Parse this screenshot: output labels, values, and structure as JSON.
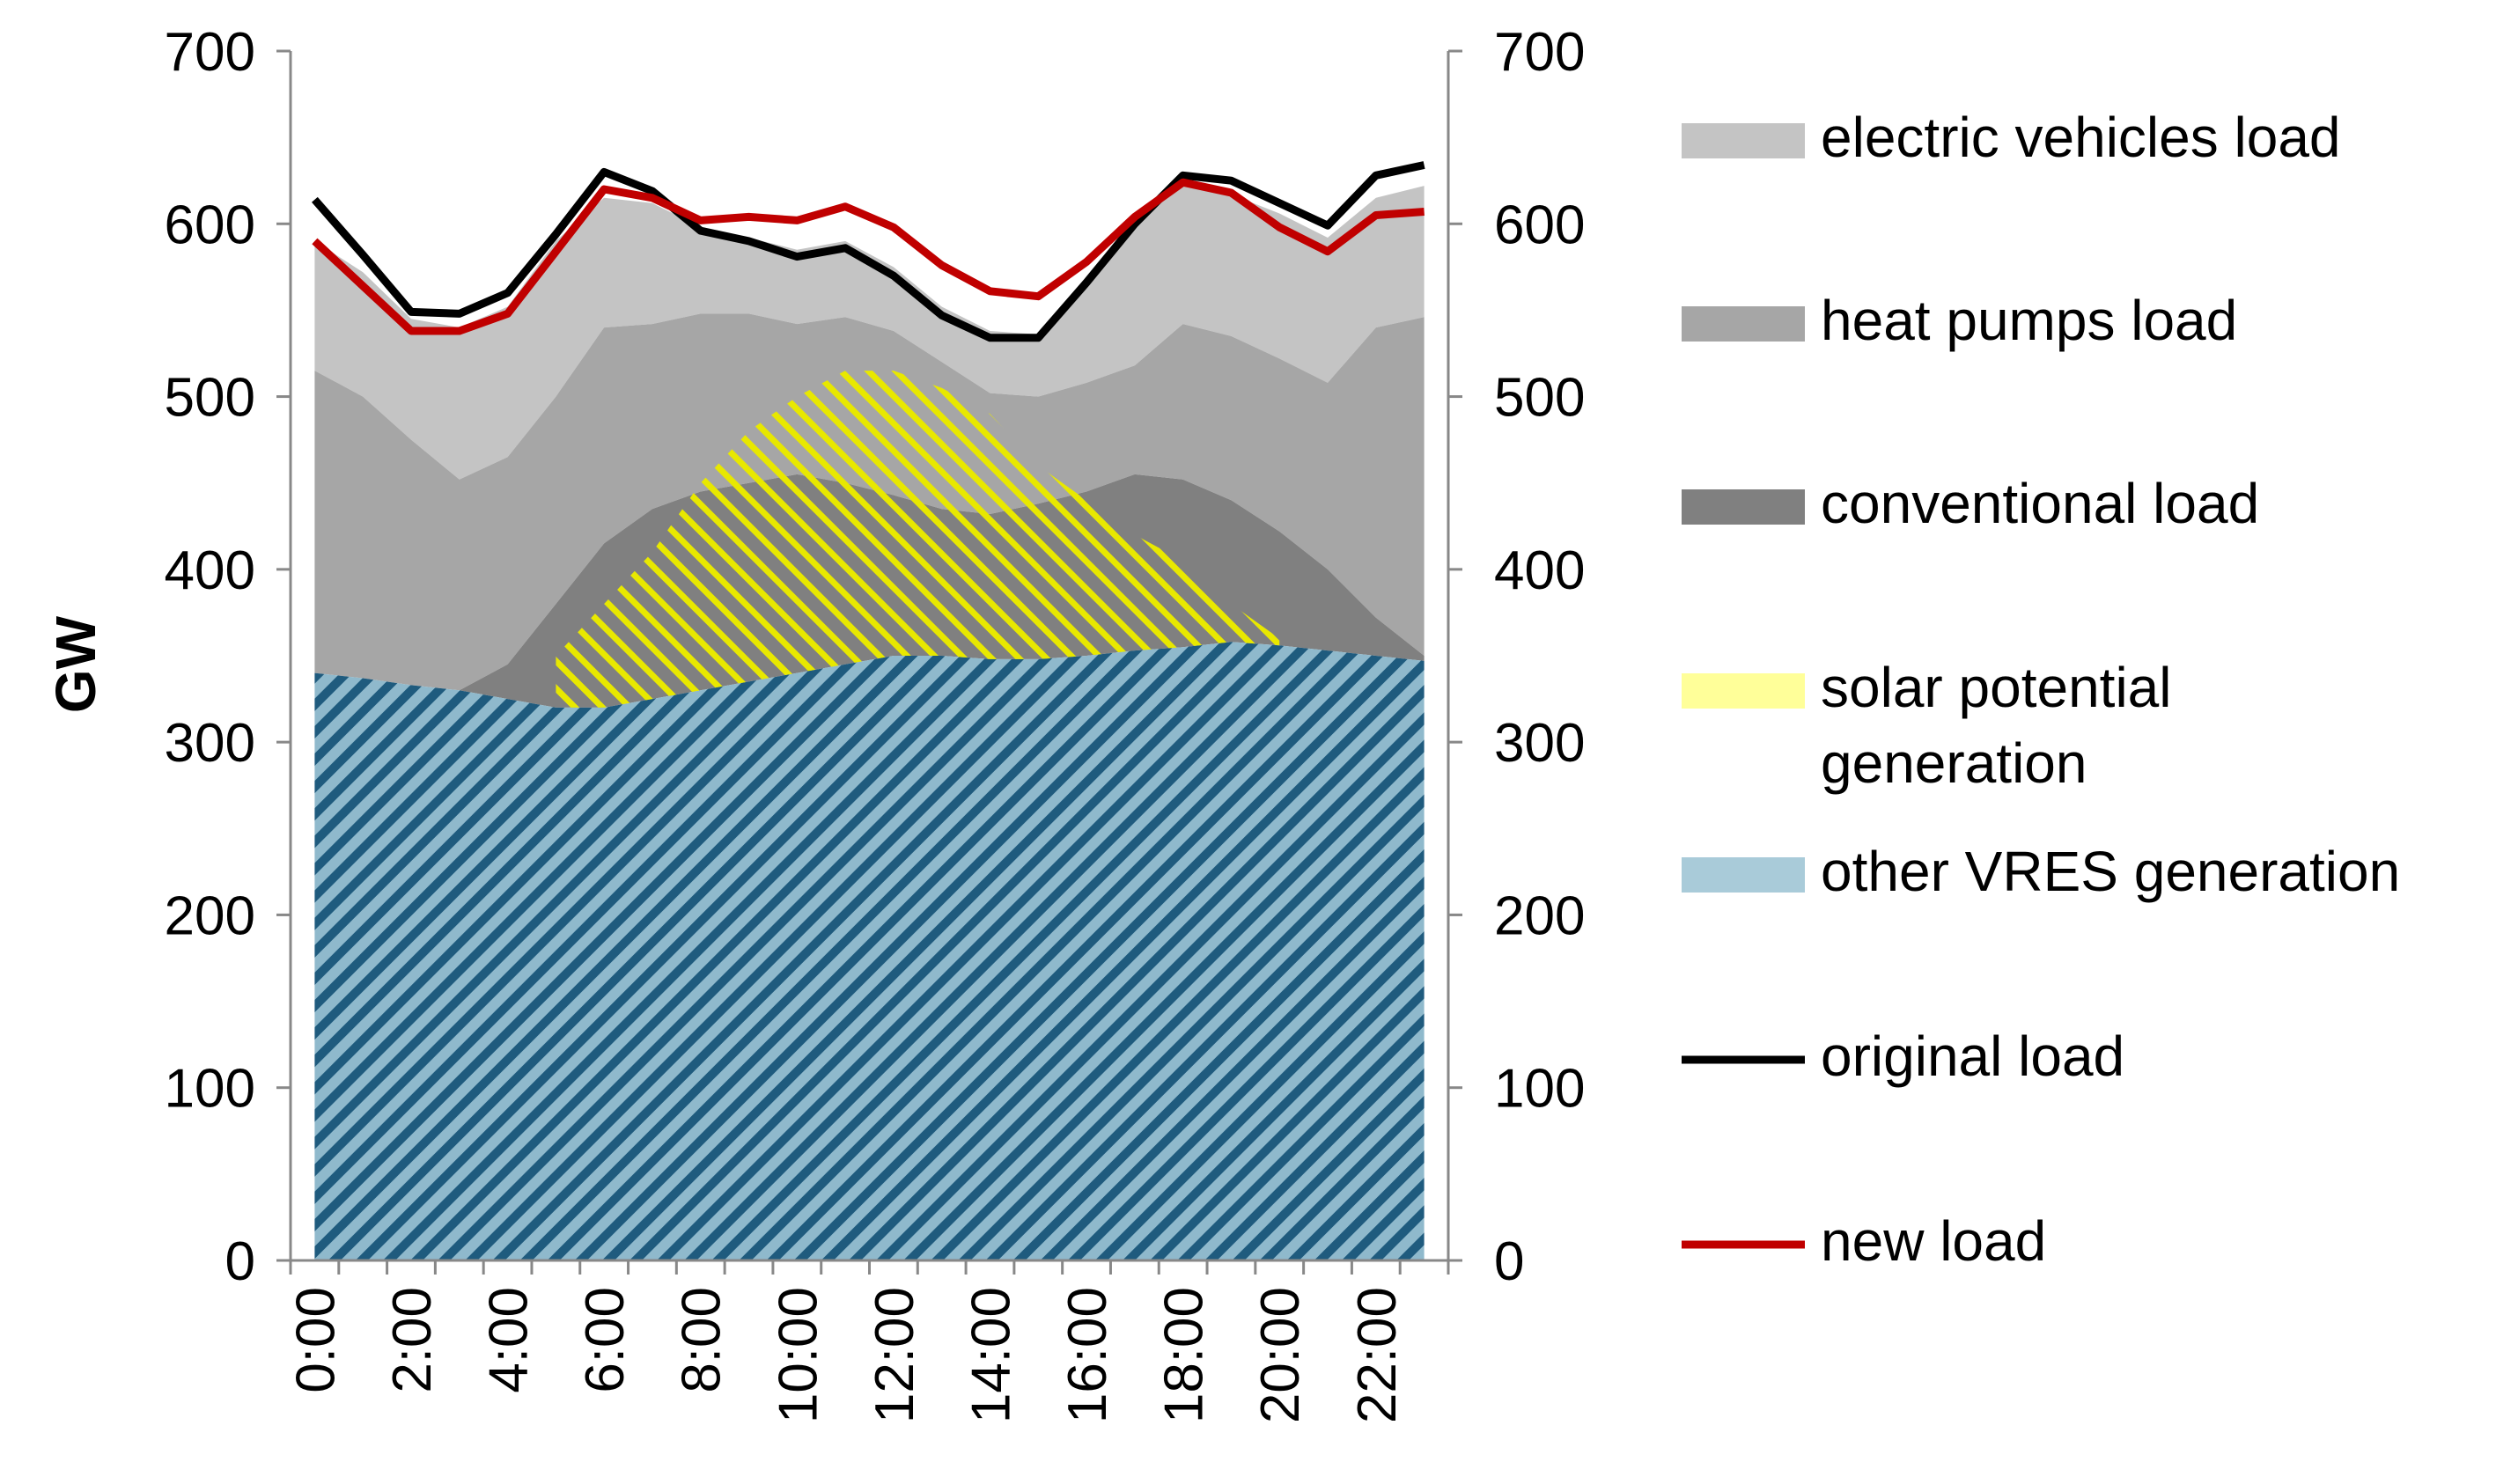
{
  "colors": {
    "ev": "#c4c4c4",
    "hp": "#a6a6a6",
    "conv": "#808080",
    "solar_line": "#e8e800",
    "solar_legend": "#ffff99",
    "vres_line": "#1f5b7e",
    "vres_bg": "#8fb9cc",
    "vres_legend": "#a9cbd9",
    "original": "#000000",
    "new": "#c00000",
    "axis": "#888888"
  },
  "chart_data": {
    "type": "area",
    "ylabel": "GW",
    "ylim": [
      0,
      700
    ],
    "yticks": [
      0,
      100,
      200,
      300,
      400,
      500,
      600,
      700
    ],
    "y2ticks": [
      0,
      100,
      200,
      300,
      400,
      500,
      600,
      700
    ],
    "x": [
      0,
      1,
      2,
      3,
      4,
      5,
      6,
      7,
      8,
      9,
      10,
      11,
      12,
      13,
      14,
      15,
      16,
      17,
      18,
      19,
      20,
      21,
      22,
      23
    ],
    "xtick_labels": [
      "0:00",
      "2:00",
      "4:00",
      "6:00",
      "8:00",
      "10:00",
      "12:00",
      "14:00",
      "16:00",
      "18:00",
      "20:00",
      "22:00"
    ],
    "series": [
      {
        "key": "vres",
        "name": "other VRES generation",
        "kind": "area",
        "values": [
          340,
          337,
          333,
          330,
          325,
          320,
          320,
          325,
          330,
          335,
          340,
          345,
          350,
          350,
          348,
          348,
          350,
          353,
          355,
          358,
          356,
          353,
          350,
          347
        ]
      },
      {
        "key": "solar",
        "name": "solar potential generation",
        "kind": "area",
        "values": [
          null,
          null,
          null,
          null,
          null,
          350,
          380,
          410,
          450,
          480,
          500,
          515,
          515,
          505,
          490,
          460,
          440,
          420,
          405,
          380,
          360,
          null,
          null,
          null
        ]
      },
      {
        "key": "conv",
        "name": "conventional load",
        "kind": "stack_top",
        "values": [
          340,
          337,
          333,
          330,
          345,
          380,
          415,
          435,
          445,
          450,
          455,
          450,
          443,
          435,
          432,
          438,
          445,
          455,
          452,
          440,
          422,
          400,
          372,
          350
        ]
      },
      {
        "key": "hp",
        "name": "heat pumps load",
        "kind": "stack_top",
        "values": [
          515,
          500,
          475,
          452,
          465,
          500,
          540,
          542,
          548,
          548,
          542,
          546,
          538,
          520,
          502,
          500,
          508,
          518,
          542,
          535,
          522,
          508,
          540,
          546
        ]
      },
      {
        "key": "ev",
        "name": "electric vehicles load",
        "kind": "stack_top",
        "values": [
          590,
          572,
          545,
          540,
          552,
          590,
          615,
          612,
          598,
          592,
          585,
          590,
          575,
          552,
          538,
          536,
          568,
          605,
          625,
          617,
          606,
          592,
          615,
          622
        ]
      },
      {
        "key": "original",
        "name": "original load",
        "kind": "line",
        "values": [
          614,
          582,
          549,
          548,
          560,
          594,
          630,
          619,
          596,
          590,
          581,
          586,
          570,
          547,
          534,
          534,
          566,
          600,
          628,
          625,
          612,
          599,
          628,
          634
        ]
      },
      {
        "key": "new",
        "name": "new load",
        "kind": "line",
        "values": [
          590,
          564,
          538,
          538,
          548,
          584,
          620,
          615,
          602,
          604,
          602,
          610,
          598,
          576,
          561,
          558,
          578,
          604,
          624,
          618,
          598,
          584,
          605,
          607
        ]
      }
    ],
    "legend": [
      {
        "key": "ev",
        "lines": [
          "electric vehicles load"
        ]
      },
      {
        "key": "hp",
        "lines": [
          "heat pumps load"
        ]
      },
      {
        "key": "conv",
        "lines": [
          "conventional load"
        ]
      },
      {
        "key": "solar",
        "lines": [
          "solar potential",
          "generation"
        ]
      },
      {
        "key": "vres",
        "lines": [
          "other VRES generation"
        ]
      },
      {
        "key": "original",
        "lines": [
          "original load"
        ]
      },
      {
        "key": "new",
        "lines": [
          "new load"
        ]
      }
    ]
  }
}
